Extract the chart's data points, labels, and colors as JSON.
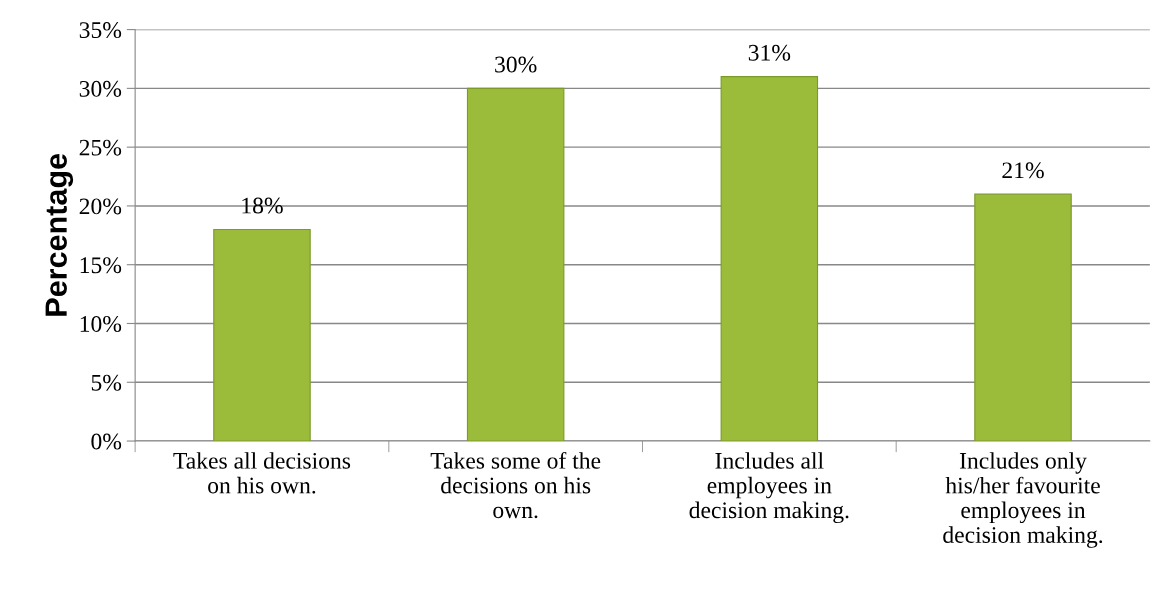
{
  "chart_data": {
    "type": "bar",
    "ylabel": "Percentage",
    "categories": [
      "Takes all decisions\non his own.",
      "Takes some of the\ndecisions on his\nown.",
      "Includes all\nemployees in\ndecision making.",
      "Includes only\nhis/her favourite\nemployees in\ndecision making."
    ],
    "values": [
      18,
      30,
      31,
      21
    ],
    "color": "#9bbb3b",
    "value_labels": [
      "18%",
      "30%",
      "31%",
      "21%"
    ],
    "ylim": [
      0,
      35
    ],
    "yticks": [
      {
        "value": 0,
        "label": "0%"
      },
      {
        "value": 5,
        "label": "5%"
      },
      {
        "value": 10,
        "label": "10%"
      },
      {
        "value": 15,
        "label": "15%"
      },
      {
        "value": 20,
        "label": "20%"
      },
      {
        "value": 25,
        "label": "25%"
      },
      {
        "value": 30,
        "label": "30%"
      },
      {
        "value": 35,
        "label": "35%"
      }
    ],
    "grid": "y",
    "legend": false
  }
}
